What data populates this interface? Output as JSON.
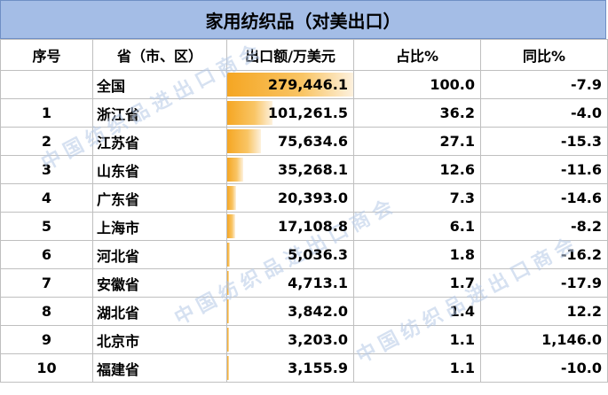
{
  "title": "家用纺织品（对美出口）",
  "headers": [
    "序号",
    "省（市、区）",
    "出口额/万美元",
    "占比%",
    "同比%"
  ],
  "watermark": "中国纺织品进出口商会",
  "bar_color": "#f5a623",
  "rows": [
    {
      "rank": "",
      "province": "全国",
      "export": "279,446.1",
      "export_value": 279446.1,
      "share": "100.0",
      "yoy": "-7.9"
    },
    {
      "rank": "1",
      "province": "浙江省",
      "export": "101,261.5",
      "export_value": 101261.5,
      "share": "36.2",
      "yoy": "-4.0"
    },
    {
      "rank": "2",
      "province": "江苏省",
      "export": "75,634.6",
      "export_value": 75634.6,
      "share": "27.1",
      "yoy": "-15.3"
    },
    {
      "rank": "3",
      "province": "山东省",
      "export": "35,268.1",
      "export_value": 35268.1,
      "share": "12.6",
      "yoy": "-11.6"
    },
    {
      "rank": "4",
      "province": "广东省",
      "export": "20,393.0",
      "export_value": 20393.0,
      "share": "7.3",
      "yoy": "-14.6"
    },
    {
      "rank": "5",
      "province": "上海市",
      "export": "17,108.8",
      "export_value": 17108.8,
      "share": "6.1",
      "yoy": "-8.2"
    },
    {
      "rank": "6",
      "province": "河北省",
      "export": "5,036.3",
      "export_value": 5036.3,
      "share": "1.8",
      "yoy": "-16.2"
    },
    {
      "rank": "7",
      "province": "安徽省",
      "export": "4,713.1",
      "export_value": 4713.1,
      "share": "1.7",
      "yoy": "-17.9"
    },
    {
      "rank": "8",
      "province": "湖北省",
      "export": "3,842.0",
      "export_value": 3842.0,
      "share": "1.4",
      "yoy": "12.2"
    },
    {
      "rank": "9",
      "province": "北京市",
      "export": "3,203.0",
      "export_value": 3203.0,
      "share": "1.1",
      "yoy": "1,146.0"
    },
    {
      "rank": "10",
      "province": "福建省",
      "export": "3,155.9",
      "export_value": 3155.9,
      "share": "1.1",
      "yoy": "-10.0"
    }
  ]
}
